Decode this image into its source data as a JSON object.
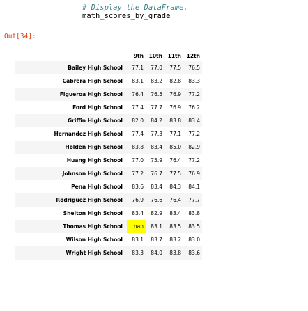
{
  "cell": {
    "code_comment": "# Display the DataFrame.",
    "code_line": "math_scores_by_grade",
    "out_prompt": "Out[34]:"
  },
  "table": {
    "columns": [
      "9th",
      "10th",
      "11th",
      "12th"
    ],
    "rows": [
      {
        "school": "Bailey High School",
        "values": [
          "77.1",
          "77.0",
          "77.5",
          "76.5"
        ]
      },
      {
        "school": "Cabrera High School",
        "values": [
          "83.1",
          "83.2",
          "82.8",
          "83.3"
        ]
      },
      {
        "school": "Figueroa High School",
        "values": [
          "76.4",
          "76.5",
          "76.9",
          "77.2"
        ]
      },
      {
        "school": "Ford High School",
        "values": [
          "77.4",
          "77.7",
          "76.9",
          "76.2"
        ]
      },
      {
        "school": "Griffin High School",
        "values": [
          "82.0",
          "84.2",
          "83.8",
          "83.4"
        ]
      },
      {
        "school": "Hernandez High School",
        "values": [
          "77.4",
          "77.3",
          "77.1",
          "77.2"
        ]
      },
      {
        "school": "Holden High School",
        "values": [
          "83.8",
          "83.4",
          "85.0",
          "82.9"
        ]
      },
      {
        "school": "Huang High School",
        "values": [
          "77.0",
          "75.9",
          "76.4",
          "77.2"
        ]
      },
      {
        "school": "Johnson High School",
        "values": [
          "77.2",
          "76.7",
          "77.5",
          "76.9"
        ]
      },
      {
        "school": "Pena High School",
        "values": [
          "83.6",
          "83.4",
          "84.3",
          "84.1"
        ]
      },
      {
        "school": "Rodriguez High School",
        "values": [
          "76.9",
          "76.6",
          "76.4",
          "77.7"
        ]
      },
      {
        "school": "Shelton High School",
        "values": [
          "83.4",
          "82.9",
          "83.4",
          "83.8"
        ]
      },
      {
        "school": "Thomas High School",
        "highlight_index": "nan",
        "values": [
          "",
          "83.1",
          "83.5",
          "83.5"
        ]
      },
      {
        "school": "Wilson High School",
        "values": [
          "83.1",
          "83.7",
          "83.2",
          "83.0"
        ]
      },
      {
        "school": "Wright High School",
        "values": [
          "83.3",
          "84.0",
          "83.8",
          "83.6"
        ]
      }
    ]
  },
  "colors": {
    "highlight": "#ffff00",
    "prompt": "#d84315",
    "comment": "#408080"
  }
}
